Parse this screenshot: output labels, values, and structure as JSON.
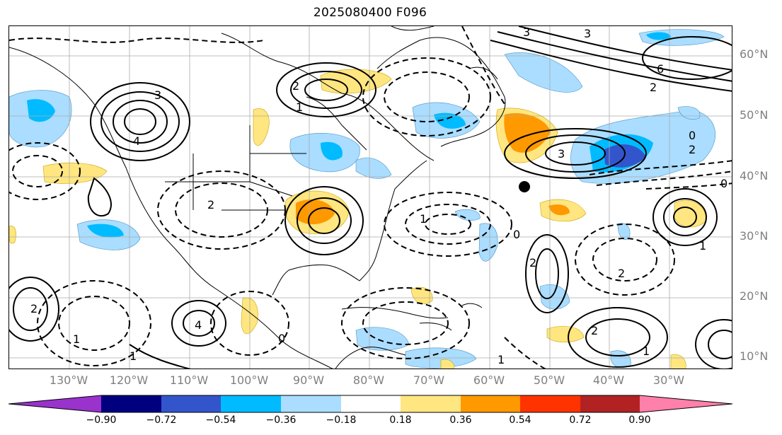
{
  "title": "2025080400 F096",
  "lat_labels": [
    "60°N",
    "50°N",
    "40°N",
    "30°N",
    "20°N",
    "10°N"
  ],
  "lon_labels": [
    "130°W",
    "120°W",
    "110°W",
    "100°W",
    "90°W",
    "80°W",
    "70°W",
    "60°W",
    "50°W",
    "40°W",
    "30°W"
  ],
  "colorbar": {
    "ticks": [
      "−0.90",
      "−0.72",
      "−0.54",
      "−0.36",
      "−0.18",
      "0.18",
      "0.36",
      "0.54",
      "0.72",
      "0.90"
    ],
    "colors": [
      "#9933cc",
      "#00007f",
      "#3355cc",
      "#00bbff",
      "#aaddff",
      "#ffffff",
      "#ffe680",
      "#ff9900",
      "#ff3300",
      "#b22222",
      "#ff80aa"
    ]
  },
  "contour_labels": [
    "3",
    "3",
    "6",
    "2",
    "3",
    "4",
    "2",
    "1",
    "0",
    "2",
    "3",
    "0",
    "2",
    "0",
    "1",
    "2",
    "2",
    "1",
    "2",
    "1",
    "0",
    "1",
    "1",
    "2",
    "4",
    "1"
  ],
  "marker": {
    "label": "",
    "color": "#000000"
  }
}
